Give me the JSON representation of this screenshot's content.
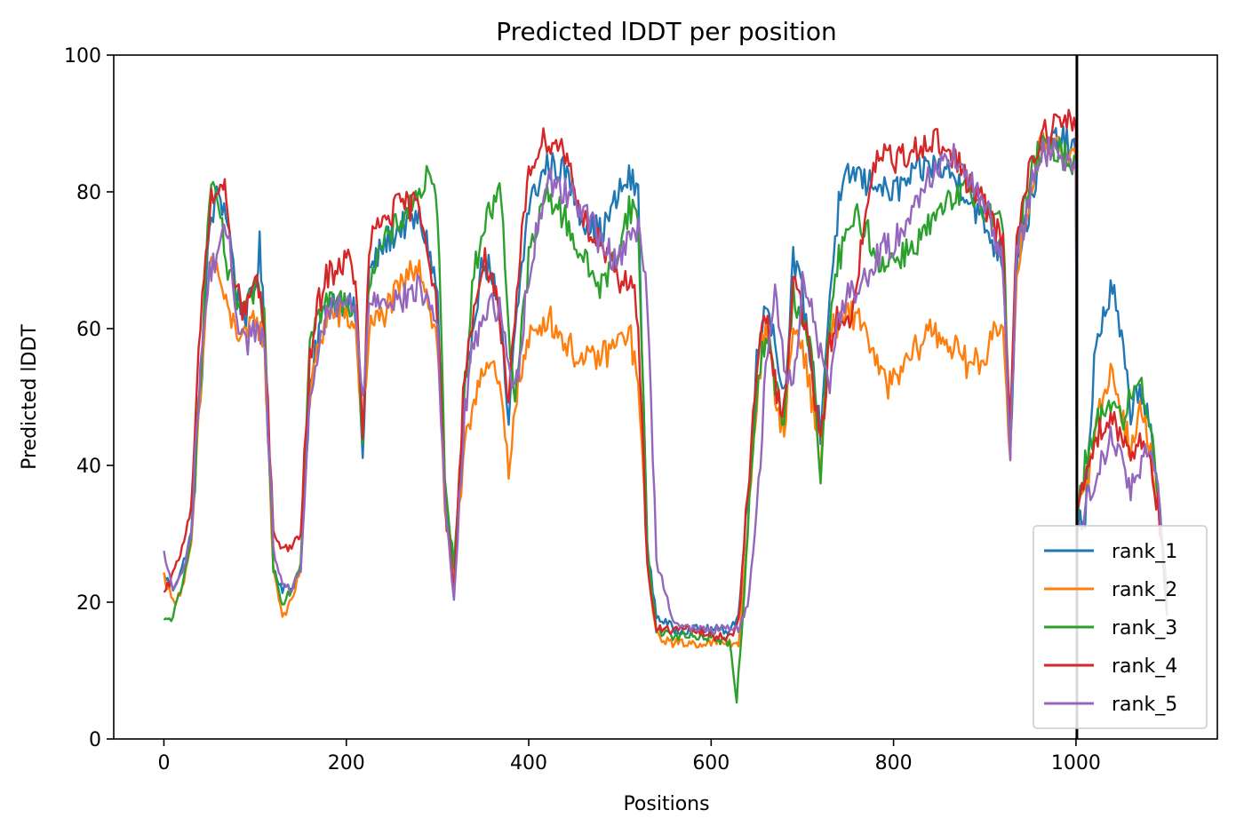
{
  "chart_data": {
    "type": "line",
    "title": "Predicted lDDT per position",
    "xlabel": "Positions",
    "ylabel": "Predicted lDDT",
    "xlim": [
      -55,
      1155
    ],
    "ylim": [
      0,
      100
    ],
    "xticks": [
      "0",
      "200",
      "400",
      "600",
      "800",
      "1000"
    ],
    "xtick_values": [
      0,
      200,
      400,
      600,
      800,
      1000
    ],
    "yticks": [
      "0",
      "20",
      "40",
      "60",
      "80",
      "100"
    ],
    "ytick_values": [
      0,
      20,
      40,
      60,
      80,
      100
    ],
    "grid": false,
    "legend_position": "lower-right",
    "vline_x": 1001,
    "series": [
      {
        "name": "rank_1",
        "color": "#1f77b4",
        "x": [
          0,
          10,
          20,
          30,
          40,
          50,
          60,
          70,
          80,
          90,
          100,
          105,
          110,
          120,
          130,
          140,
          150,
          160,
          170,
          180,
          200,
          210,
          218,
          225,
          240,
          260,
          280,
          290,
          300,
          308,
          318,
          330,
          340,
          350,
          360,
          370,
          378,
          385,
          400,
          420,
          440,
          460,
          480,
          500,
          510,
          520,
          530,
          540,
          560,
          580,
          600,
          620,
          630,
          640,
          650,
          660,
          670,
          680,
          690,
          700,
          710,
          720,
          730,
          740,
          750,
          760,
          770,
          780,
          790,
          800,
          820,
          840,
          860,
          880,
          900,
          920,
          928,
          935,
          950,
          960,
          980,
          1000,
          1001,
          1010,
          1020,
          1030,
          1040,
          1050,
          1060,
          1070,
          1080,
          1090,
          1100
        ],
        "values": [
          24,
          22,
          25,
          30,
          50,
          75,
          80,
          76,
          65,
          62,
          66,
          72,
          60,
          25,
          22,
          22,
          25,
          50,
          60,
          64,
          64,
          62,
          41,
          68,
          72,
          75,
          76,
          72,
          65,
          35,
          24,
          50,
          62,
          70,
          68,
          60,
          45,
          60,
          78,
          84,
          83,
          76,
          74,
          80,
          82,
          80,
          28,
          18,
          16,
          16,
          16,
          16,
          18,
          35,
          55,
          65,
          58,
          50,
          70,
          65,
          55,
          45,
          65,
          78,
          82,
          83,
          81,
          82,
          80,
          80,
          82,
          84,
          83,
          80,
          75,
          70,
          42,
          70,
          78,
          85,
          88,
          86,
          30,
          33,
          55,
          62,
          66,
          58,
          48,
          52,
          46,
          35,
          22
        ]
      },
      {
        "name": "rank_2",
        "color": "#ff7f0e",
        "x": [
          0,
          10,
          20,
          30,
          40,
          50,
          60,
          70,
          80,
          90,
          100,
          110,
          120,
          130,
          140,
          150,
          160,
          170,
          180,
          200,
          210,
          218,
          225,
          240,
          260,
          280,
          290,
          300,
          308,
          318,
          330,
          340,
          350,
          360,
          370,
          378,
          385,
          400,
          420,
          440,
          460,
          480,
          500,
          510,
          520,
          530,
          540,
          560,
          580,
          600,
          620,
          630,
          640,
          650,
          660,
          670,
          680,
          690,
          700,
          710,
          720,
          730,
          740,
          750,
          760,
          770,
          780,
          790,
          800,
          820,
          840,
          860,
          880,
          900,
          910,
          920,
          928,
          935,
          950,
          960,
          980,
          1000,
          1001,
          1010,
          1020,
          1030,
          1040,
          1050,
          1060,
          1070,
          1080,
          1090,
          1100
        ],
        "values": [
          24,
          20,
          22,
          28,
          50,
          70,
          68,
          62,
          60,
          58,
          62,
          58,
          25,
          18,
          20,
          25,
          50,
          58,
          62,
          62,
          60,
          45,
          60,
          62,
          66,
          70,
          64,
          58,
          34,
          23,
          42,
          50,
          55,
          54,
          50,
          38,
          50,
          58,
          62,
          58,
          55,
          56,
          58,
          60,
          52,
          26,
          15,
          14,
          14,
          14,
          14,
          14,
          30,
          50,
          62,
          50,
          45,
          60,
          58,
          50,
          40,
          60,
          60,
          62,
          62,
          60,
          55,
          52,
          52,
          56,
          60,
          58,
          55,
          55,
          62,
          58,
          42,
          68,
          80,
          86,
          88,
          84,
          32,
          36,
          45,
          50,
          54,
          48,
          42,
          48,
          44,
          34,
          21
        ]
      },
      {
        "name": "rank_3",
        "color": "#2ca02c",
        "x": [
          0,
          10,
          20,
          30,
          40,
          50,
          60,
          70,
          80,
          90,
          100,
          110,
          120,
          130,
          140,
          150,
          160,
          170,
          180,
          200,
          210,
          218,
          225,
          240,
          260,
          280,
          290,
          300,
          308,
          318,
          330,
          340,
          350,
          360,
          370,
          378,
          385,
          400,
          420,
          440,
          460,
          480,
          500,
          510,
          520,
          530,
          540,
          560,
          580,
          600,
          620,
          628,
          635,
          640,
          650,
          660,
          670,
          680,
          690,
          700,
          710,
          720,
          730,
          740,
          750,
          760,
          770,
          780,
          790,
          800,
          820,
          840,
          860,
          880,
          900,
          920,
          928,
          935,
          950,
          960,
          980,
          1000,
          1001,
          1010,
          1020,
          1030,
          1040,
          1050,
          1060,
          1070,
          1080,
          1090,
          1100
        ],
        "values": [
          17,
          18,
          22,
          30,
          52,
          80,
          78,
          68,
          64,
          62,
          66,
          62,
          25,
          20,
          22,
          26,
          60,
          62,
          64,
          64,
          63,
          45,
          68,
          72,
          76,
          80,
          82,
          78,
          40,
          25,
          52,
          68,
          75,
          78,
          80,
          60,
          50,
          70,
          80,
          76,
          70,
          66,
          72,
          78,
          76,
          28,
          16,
          15,
          15,
          15,
          14,
          6,
          18,
          30,
          50,
          60,
          52,
          46,
          65,
          62,
          56,
          38,
          62,
          70,
          74,
          76,
          75,
          70,
          70,
          70,
          72,
          75,
          78,
          80,
          78,
          75,
          45,
          72,
          82,
          86,
          86,
          84,
          34,
          40,
          45,
          48,
          50,
          46,
          50,
          52,
          48,
          36,
          18
        ]
      },
      {
        "name": "rank_4",
        "color": "#d62728",
        "x": [
          0,
          10,
          20,
          30,
          40,
          50,
          60,
          65,
          70,
          80,
          90,
          100,
          110,
          120,
          130,
          140,
          150,
          160,
          170,
          180,
          200,
          210,
          218,
          225,
          240,
          260,
          280,
          290,
          300,
          308,
          318,
          330,
          340,
          350,
          360,
          370,
          378,
          385,
          400,
          420,
          440,
          460,
          480,
          500,
          510,
          520,
          530,
          540,
          560,
          580,
          600,
          620,
          630,
          640,
          650,
          660,
          670,
          680,
          690,
          700,
          710,
          720,
          730,
          740,
          750,
          760,
          770,
          780,
          790,
          800,
          820,
          840,
          860,
          880,
          900,
          920,
          928,
          935,
          950,
          960,
          980,
          1000,
          1001,
          1010,
          1020,
          1030,
          1040,
          1050,
          1060,
          1070,
          1080,
          1090,
          1100
        ],
        "values": [
          21,
          24,
          28,
          35,
          60,
          78,
          80,
          82,
          75,
          65,
          62,
          68,
          60,
          30,
          28,
          28,
          30,
          55,
          64,
          68,
          70,
          68,
          43,
          72,
          76,
          78,
          78,
          72,
          62,
          35,
          22,
          55,
          62,
          70,
          68,
          58,
          48,
          62,
          84,
          88,
          86,
          76,
          72,
          66,
          68,
          62,
          25,
          16,
          16,
          16,
          15,
          15,
          17,
          35,
          55,
          62,
          52,
          48,
          68,
          62,
          55,
          42,
          58,
          62,
          60,
          68,
          76,
          84,
          86,
          84,
          86,
          88,
          86,
          82,
          78,
          72,
          46,
          74,
          84,
          88,
          90,
          90,
          34,
          38,
          44,
          46,
          47,
          44,
          42,
          44,
          42,
          34,
          20
        ]
      },
      {
        "name": "rank_5",
        "color": "#9467bd",
        "x": [
          0,
          10,
          20,
          30,
          40,
          50,
          60,
          70,
          80,
          90,
          100,
          110,
          120,
          130,
          140,
          150,
          160,
          170,
          180,
          200,
          210,
          218,
          225,
          240,
          260,
          280,
          290,
          300,
          308,
          318,
          330,
          340,
          350,
          360,
          370,
          378,
          385,
          400,
          420,
          440,
          460,
          480,
          500,
          510,
          520,
          530,
          540,
          560,
          580,
          600,
          620,
          630,
          640,
          650,
          660,
          670,
          680,
          690,
          700,
          710,
          720,
          730,
          740,
          750,
          760,
          770,
          780,
          790,
          800,
          820,
          840,
          860,
          880,
          900,
          920,
          928,
          935,
          950,
          960,
          980,
          1000,
          1001,
          1010,
          1020,
          1030,
          1040,
          1050,
          1060,
          1070,
          1080,
          1090,
          1100
        ],
        "values": [
          27,
          22,
          24,
          30,
          55,
          68,
          72,
          74,
          62,
          58,
          60,
          58,
          28,
          22,
          22,
          25,
          48,
          58,
          62,
          64,
          62,
          50,
          64,
          65,
          64,
          66,
          64,
          60,
          35,
          20,
          48,
          58,
          62,
          64,
          62,
          55,
          50,
          68,
          82,
          80,
          78,
          72,
          70,
          75,
          74,
          65,
          26,
          17,
          16,
          16,
          16,
          16,
          20,
          32,
          55,
          65,
          56,
          50,
          68,
          64,
          56,
          52,
          62,
          66,
          65,
          68,
          70,
          72,
          72,
          78,
          82,
          86,
          82,
          78,
          70,
          42,
          70,
          80,
          86,
          86,
          84,
          30,
          33,
          38,
          42,
          44,
          42,
          36,
          40,
          42,
          36,
          20
        ]
      }
    ]
  }
}
